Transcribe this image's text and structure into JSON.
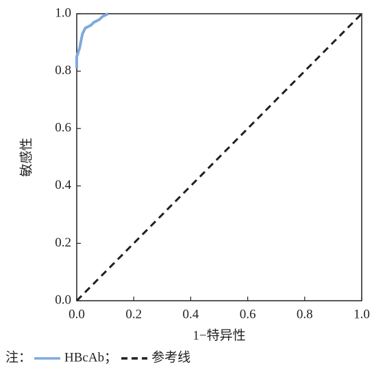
{
  "chart_data": {
    "type": "line",
    "x_label": "1−特异性",
    "y_label": "敏感性",
    "xlim": [
      0,
      1
    ],
    "ylim": [
      0,
      1
    ],
    "xticks": [
      {
        "value": 0,
        "label": "0.0"
      },
      0.2,
      0.4,
      0.6,
      0.8,
      {
        "value": 1,
        "label": "1.0"
      }
    ],
    "yticks": [
      {
        "value": 0,
        "label": "0.0"
      },
      0.2,
      0.4,
      0.6,
      0.8,
      {
        "value": 1,
        "label": "1.0"
      }
    ],
    "legend_prefix": "注：",
    "legend_separator": "；",
    "series": [
      {
        "name": "HBcAb",
        "color": "#7eaade",
        "dash": false,
        "x": [
          0,
          0,
          0.01,
          0.02,
          0.03,
          0.05,
          0.06,
          0.08,
          0.09,
          0.11
        ],
        "values": [
          0.81,
          0.85,
          0.88,
          0.93,
          0.95,
          0.96,
          0.97,
          0.98,
          0.99,
          1.0
        ]
      },
      {
        "name": "参考线",
        "color": "#231f20",
        "dash": true,
        "x": [
          0,
          1
        ],
        "values": [
          0,
          1
        ]
      }
    ]
  }
}
